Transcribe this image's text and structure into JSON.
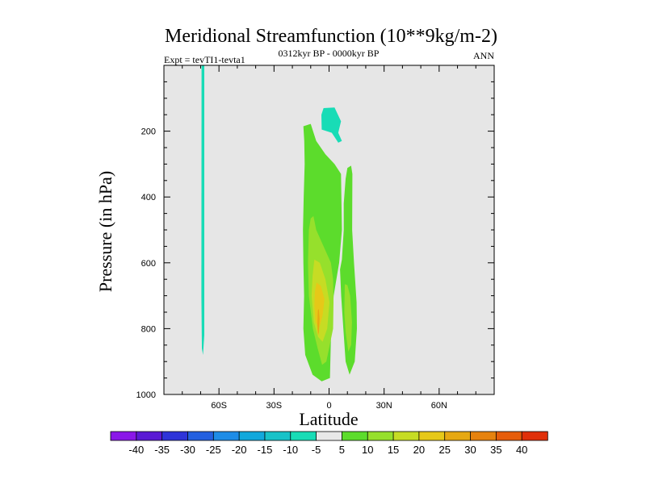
{
  "chart_data": {
    "type": "contour",
    "title": "Meridional Streamfunction (10**9kg/m-2)",
    "subtitle_left": "Expt = tevTI1-tevta1",
    "subtitle_center": "0312kyr BP - 0000kyr BP",
    "subtitle_right": "ANN",
    "xlabel": "Latitude",
    "ylabel": "Pressure (in hPa)",
    "xlim": [
      -90,
      90
    ],
    "ylim": [
      1000,
      0
    ],
    "x_ticks": [
      {
        "value": -60,
        "label": "60S"
      },
      {
        "value": -30,
        "label": "30S"
      },
      {
        "value": 0,
        "label": "0"
      },
      {
        "value": 30,
        "label": "30N"
      },
      {
        "value": 60,
        "label": "60N"
      }
    ],
    "y_ticks": [
      {
        "value": 200,
        "label": "200"
      },
      {
        "value": 400,
        "label": "400"
      },
      {
        "value": 600,
        "label": "600"
      },
      {
        "value": 800,
        "label": "800"
      },
      {
        "value": 1000,
        "label": "1000"
      }
    ],
    "background": "#e6e6e6",
    "colorbar": {
      "labels": [
        "-40",
        "-35",
        "-30",
        "-25",
        "-20",
        "-15",
        "-10",
        "-5",
        "5",
        "10",
        "15",
        "20",
        "25",
        "30",
        "35",
        "40"
      ],
      "colors": [
        "#8a17e8",
        "#5a1ad4",
        "#2e34d8",
        "#2460e0",
        "#1e8ce6",
        "#12a8dc",
        "#18c2c8",
        "#18dcb6",
        "#e8e8e8",
        "#5cdc2c",
        "#96e02c",
        "#c6dc24",
        "#e6c818",
        "#e6a812",
        "#e6820e",
        "#e65c0a",
        "#e0300a"
      ]
    },
    "regions": [
      {
        "name": "sh-negative-column",
        "level": "-10 to -5",
        "color": "#18dcb6",
        "points": [
          [
            -69.5,
            0
          ],
          [
            -68,
            0
          ],
          [
            -68,
            820
          ],
          [
            -68.7,
            880
          ],
          [
            -69.3,
            860
          ],
          [
            -69.6,
            700
          ]
        ]
      },
      {
        "name": "upper-negative-blob",
        "level": "-10 to -5",
        "color": "#18dcb6",
        "points": [
          [
            -3,
            130
          ],
          [
            3,
            128
          ],
          [
            6.5,
            170
          ],
          [
            5,
            205
          ],
          [
            7,
            230
          ],
          [
            5,
            235
          ],
          [
            1.5,
            205
          ],
          [
            -4,
            195
          ],
          [
            -4.2,
            150
          ]
        ]
      },
      {
        "name": "south-cell-outer",
        "level": "5 to 10",
        "color": "#5cdc2c",
        "points": [
          [
            -14,
            185
          ],
          [
            -10,
            178
          ],
          [
            -7,
            230
          ],
          [
            -2,
            270
          ],
          [
            3,
            300
          ],
          [
            6.5,
            330
          ],
          [
            7,
            500
          ],
          [
            5.5,
            600
          ],
          [
            2.5,
            700
          ],
          [
            1,
            830
          ],
          [
            0.5,
            950
          ],
          [
            -4,
            960
          ],
          [
            -9,
            940
          ],
          [
            -13,
            880
          ],
          [
            -14,
            800
          ],
          [
            -13.6,
            700
          ],
          [
            -14,
            600
          ],
          [
            -14.2,
            500
          ],
          [
            -13.8,
            400
          ],
          [
            -13.3,
            300
          ],
          [
            -13.5,
            230
          ]
        ]
      },
      {
        "name": "north-cell-outer",
        "level": "5 to 10",
        "color": "#5cdc2c",
        "points": [
          [
            10,
            312
          ],
          [
            12,
            305
          ],
          [
            12.7,
            330
          ],
          [
            12.6,
            500
          ],
          [
            13.6,
            600
          ],
          [
            15,
            720
          ],
          [
            15.2,
            800
          ],
          [
            14,
            900
          ],
          [
            11.2,
            940
          ],
          [
            9,
            900
          ],
          [
            7.8,
            800
          ],
          [
            6.6,
            700
          ],
          [
            6,
            620
          ],
          [
            7,
            590
          ],
          [
            8,
            500
          ],
          [
            8,
            420
          ],
          [
            9,
            345
          ]
        ]
      },
      {
        "name": "south-cell-10",
        "level": "10 to 15",
        "color": "#96e02c",
        "points": [
          [
            -10,
            465
          ],
          [
            -8.5,
            458
          ],
          [
            -7,
            500
          ],
          [
            -3,
            550
          ],
          [
            1,
            600
          ],
          [
            2.2,
            650
          ],
          [
            2.4,
            720
          ],
          [
            2.2,
            800
          ],
          [
            0,
            860
          ],
          [
            -1.5,
            900
          ],
          [
            -3.8,
            910
          ],
          [
            -6.2,
            860
          ],
          [
            -8.8,
            800
          ],
          [
            -11,
            700
          ],
          [
            -11.5,
            600
          ],
          [
            -11,
            500
          ]
        ]
      },
      {
        "name": "north-cell-10",
        "level": "10 to 15",
        "color": "#96e02c",
        "points": [
          [
            8.6,
            665
          ],
          [
            10,
            668
          ],
          [
            11.5,
            700
          ],
          [
            12.5,
            780
          ],
          [
            12,
            850
          ],
          [
            10.5,
            870
          ],
          [
            9,
            810
          ],
          [
            8.3,
            750
          ]
        ]
      },
      {
        "name": "south-cell-15",
        "level": "15 to 20",
        "color": "#c6dc24",
        "points": [
          [
            -8,
            590
          ],
          [
            -5,
            600
          ],
          [
            -2,
            650
          ],
          [
            0.2,
            720
          ],
          [
            -1,
            800
          ],
          [
            -3.5,
            840
          ],
          [
            -6,
            825
          ],
          [
            -8.3,
            780
          ],
          [
            -9.5,
            700
          ],
          [
            -9,
            640
          ]
        ]
      },
      {
        "name": "south-cell-20",
        "level": "20 to 25",
        "color": "#e6c818",
        "points": [
          [
            -6.8,
            660
          ],
          [
            -4.5,
            670
          ],
          [
            -2.5,
            710
          ],
          [
            -3.5,
            760
          ],
          [
            -5.5,
            800
          ],
          [
            -7.3,
            780
          ],
          [
            -8,
            730
          ],
          [
            -7.8,
            690
          ]
        ]
      },
      {
        "name": "south-cell-25",
        "level": "25 to 30",
        "color": "#e6a812",
        "points": [
          [
            -6.1,
            745
          ],
          [
            -5.6,
            740
          ],
          [
            -5.2,
            770
          ],
          [
            -5.5,
            810
          ],
          [
            -6.0,
            820
          ],
          [
            -6.4,
            790
          ]
        ]
      }
    ]
  }
}
